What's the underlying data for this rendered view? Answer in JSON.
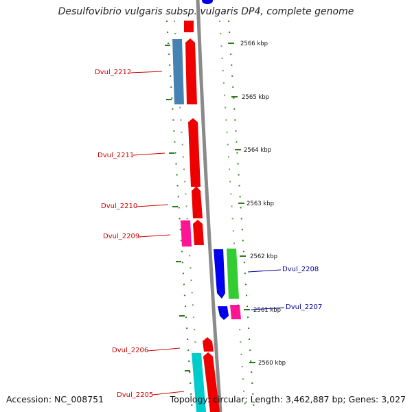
{
  "title": "Desulfovibrio vulgaris subsp. vulgaris DP4, complete genome",
  "footer": {
    "accession": "Accession: NC_008751",
    "summary": "Topology: circular; Length: 3,462,887 bp; Genes: 3,027"
  },
  "colors": {
    "label_left": "#cc0000",
    "label_right": "#000099",
    "ticks": "#2a7a1a",
    "backbone": "#8a8a8a"
  },
  "ticks": [
    "2566 kbp",
    "2565 kbp",
    "2564 kbp",
    "2563 kbp",
    "2562 kbp",
    "2561 kbp",
    "2560 kbp"
  ],
  "gene_labels": {
    "left": [
      "Dvul_2212",
      "Dvul_2211",
      "Dvul_2210",
      "Dvul_2209",
      "Dvul_2206",
      "Dvul_2205"
    ],
    "right": [
      "Dvul_2208",
      "Dvul_2207"
    ]
  }
}
